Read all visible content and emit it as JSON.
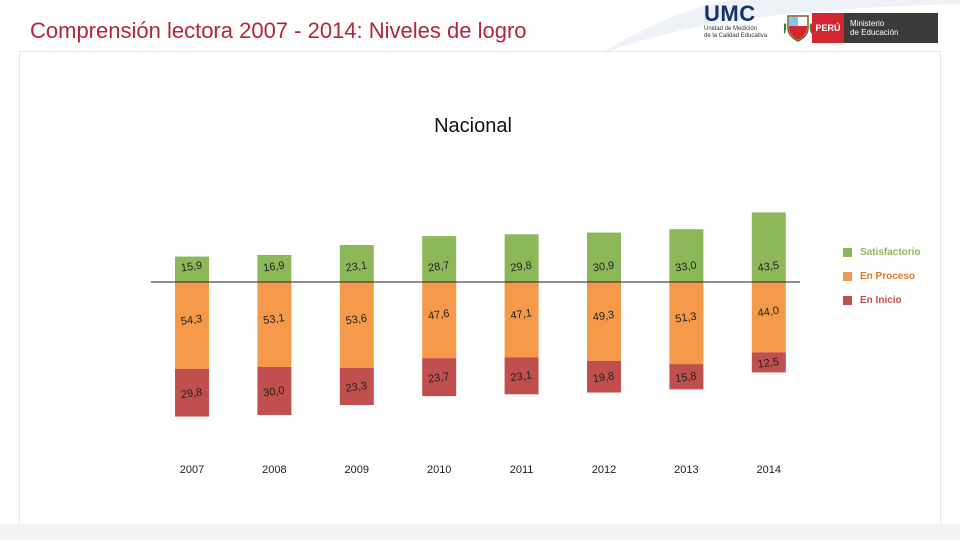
{
  "header": {
    "title": "Comprensión lectora 2007 - 2014: Niveles de logro",
    "umc_logo": {
      "title": "UMC",
      "subtitle": [
        "Unidad de Medición",
        "de la Calidad Educativa"
      ]
    },
    "peru_logo": {
      "country": "PERÚ",
      "ministry": "Ministerio\nde Educación"
    },
    "icons": [
      "coat-of-arms-icon"
    ]
  },
  "colors": {
    "title": "#b5253a",
    "satisfactorio": "#8db85a",
    "en_proceso": "#f59a4a",
    "en_inicio": "#c0504d"
  },
  "chart_data": {
    "type": "bar",
    "title": "Nacional",
    "categories": [
      "2007",
      "2008",
      "2009",
      "2010",
      "2011",
      "2012",
      "2013",
      "2014"
    ],
    "series": [
      {
        "name": "Satisfactorio",
        "values": [
          15.9,
          16.9,
          23.1,
          28.7,
          29.8,
          30.9,
          33.0,
          43.5
        ],
        "labels": [
          "15,9",
          "16,9",
          "23,1",
          "28,7",
          "29,8",
          "30,9",
          "33,0",
          "43,5"
        ]
      },
      {
        "name": "En Proceso",
        "values": [
          54.3,
          53.1,
          53.6,
          47.6,
          47.1,
          49.3,
          51.3,
          44.0
        ],
        "labels": [
          "54,3",
          "53,1",
          "53,6",
          "47,6",
          "47,1",
          "49,3",
          "51,3",
          "44,0"
        ]
      },
      {
        "name": "En Inicio",
        "values": [
          29.8,
          30.0,
          23.3,
          23.7,
          23.1,
          19.8,
          15.8,
          12.5
        ],
        "labels": [
          "29,8",
          "30,0",
          "23,3",
          "23,7",
          "23,1",
          "19,8",
          "15,8",
          "12,5"
        ]
      }
    ],
    "legend_position": "right",
    "grid": false,
    "baseline": "between Satisfactorio and En Proceso"
  }
}
